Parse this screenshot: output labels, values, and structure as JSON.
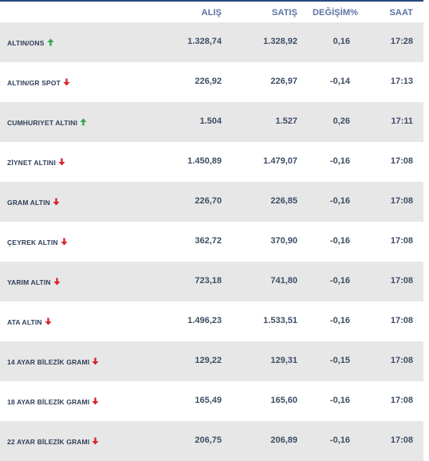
{
  "columns": {
    "buy": "ALIŞ",
    "sell": "SATIŞ",
    "change": "DEĞİŞİM%",
    "time": "SAAT"
  },
  "colors": {
    "header_text": "#5b73a3",
    "row_shade": "#e7e7e7",
    "arrow_up": "#35a84a",
    "arrow_down": "#d7242a",
    "top_rule": "#27487d"
  },
  "rows": [
    {
      "name": "ALTIN/ONS",
      "buy": "1.328,74",
      "sell": "1.328,92",
      "change": "0,16",
      "time": "17:28",
      "trend_icon": "arrow-up-icon"
    },
    {
      "name": "ALTIN/GR SPOT",
      "buy": "226,92",
      "sell": "226,97",
      "change": "-0,14",
      "time": "17:13",
      "trend_icon": "arrow-down-icon"
    },
    {
      "name": "CUMHURIYET ALTINI",
      "buy": "1.504",
      "sell": "1.527",
      "change": "0,26",
      "time": "17:11",
      "trend_icon": "arrow-up-icon"
    },
    {
      "name": "ZİYNET ALTINI",
      "buy": "1.450,89",
      "sell": "1.479,07",
      "change": "-0,16",
      "time": "17:08",
      "trend_icon": "arrow-down-icon"
    },
    {
      "name": "GRAM ALTIN",
      "buy": "226,70",
      "sell": "226,85",
      "change": "-0,16",
      "time": "17:08",
      "trend_icon": "arrow-down-icon"
    },
    {
      "name": "ÇEYREK ALTIN",
      "buy": "362,72",
      "sell": "370,90",
      "change": "-0,16",
      "time": "17:08",
      "trend_icon": "arrow-down-icon"
    },
    {
      "name": "YARIM ALTIN",
      "buy": "723,18",
      "sell": "741,80",
      "change": "-0,16",
      "time": "17:08",
      "trend_icon": "arrow-down-icon"
    },
    {
      "name": "ATA ALTIN",
      "buy": "1.496,23",
      "sell": "1.533,51",
      "change": "-0,16",
      "time": "17:08",
      "trend_icon": "arrow-down-icon"
    },
    {
      "name": "14 AYAR BİLEZİK GRAMI",
      "buy": "129,22",
      "sell": "129,31",
      "change": "-0,15",
      "time": "17:08",
      "trend_icon": "arrow-down-icon"
    },
    {
      "name": "18 AYAR BİLEZİK GRAMI",
      "buy": "165,49",
      "sell": "165,60",
      "change": "-0,16",
      "time": "17:08",
      "trend_icon": "arrow-down-icon"
    },
    {
      "name": "22 AYAR BİLEZİK GRAMI",
      "buy": "206,75",
      "sell": "206,89",
      "change": "-0,16",
      "time": "17:08",
      "trend_icon": "arrow-down-icon"
    }
  ]
}
